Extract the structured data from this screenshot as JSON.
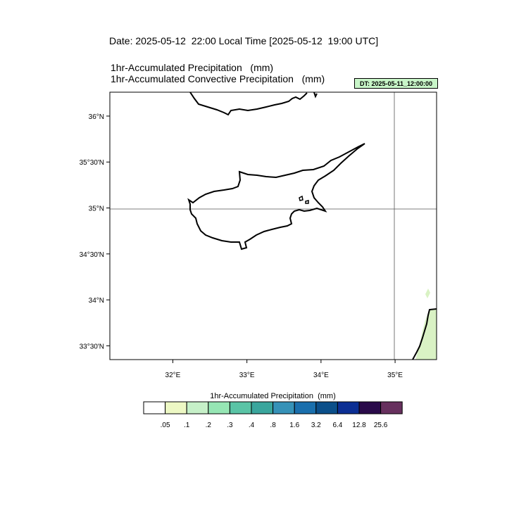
{
  "header": {
    "date_line": "Date: 2025-05-12  22:00 Local Time [2025-05-12  19:00 UTC]",
    "title_line1": "1hr-Accumulated Precipitation   (mm)",
    "title_line2": "1hr-Accumulated Convective Precipitation   (mm)",
    "dt_badge": "DT: 2025-05-11_12:00:00"
  },
  "map": {
    "lat_labels": [
      {
        "lat": 36.0,
        "text": "36°N"
      },
      {
        "lat": 35.5,
        "text": "35°30'N"
      },
      {
        "lat": 35.0,
        "text": "35°N"
      },
      {
        "lat": 34.5,
        "text": "34°30'N"
      },
      {
        "lat": 34.0,
        "text": "34°N"
      },
      {
        "lat": 33.5,
        "text": "33°30'N"
      }
    ],
    "lon_labels": [
      {
        "lon": 32.0,
        "text": "32°E"
      },
      {
        "lon": 33.0,
        "text": "33°E"
      },
      {
        "lon": 34.0,
        "text": "34°E"
      },
      {
        "lon": 35.0,
        "text": "35°E"
      }
    ],
    "gridlines": {
      "lat": [
        35.0
      ],
      "lon": [
        35.0
      ]
    },
    "extent": {
      "lon_min": 31.15,
      "lon_max": 35.56,
      "lat_min": 33.35,
      "lat_max": 36.26
    },
    "region": "Cyprus and Eastern Mediterranean",
    "colors": {
      "coast": "#000000",
      "grid": "#555555",
      "precip_light": "#d9f2c4"
    }
  },
  "colorbar": {
    "title": "1hr-Accumulated Precipitation  (mm)",
    "colors": [
      "#ffffff",
      "#edf8c4",
      "#c6f0c8",
      "#96e6b4",
      "#5ac4a6",
      "#3aa69d",
      "#3692b8",
      "#1a6fad",
      "#0b4f8a",
      "#0c2f94",
      "#2a0a4a",
      "#67305e"
    ],
    "labels": [
      ".05",
      ".1",
      ".2",
      ".3",
      ".4",
      ".8",
      "1.6",
      "3.2",
      "6.4",
      "12.8",
      "25.6"
    ]
  }
}
